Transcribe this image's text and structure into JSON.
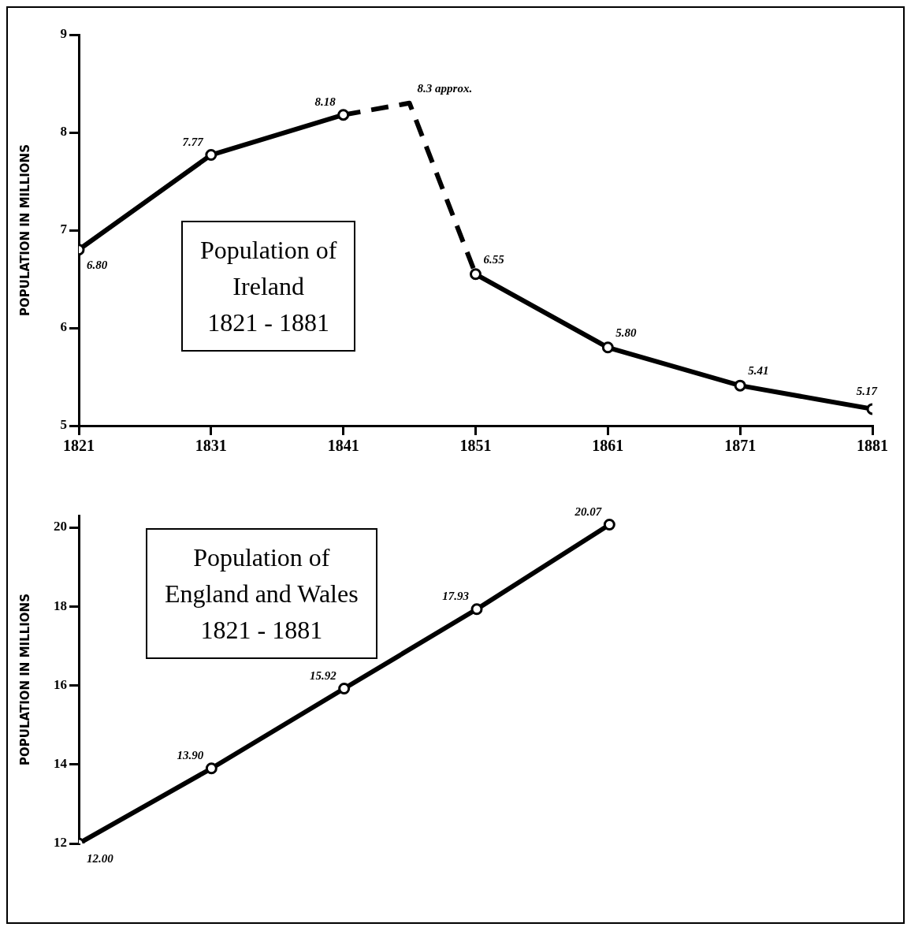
{
  "chart_data": [
    {
      "type": "line",
      "title": "Population of\nIreland\n1821 - 1881",
      "ylabel": "POPULATION IN MILLIONS",
      "xlim": [
        1821,
        1881
      ],
      "xticks": [
        1821,
        1831,
        1841,
        1851,
        1861,
        1871,
        1881
      ],
      "ylim": [
        5,
        9
      ],
      "yticks": [
        5,
        6,
        7,
        8,
        9
      ],
      "grid": false,
      "legend": false,
      "series": [
        {
          "color": "#000000",
          "marker": "circle",
          "line_style": "solid",
          "x": [
            1821,
            1831,
            1841
          ],
          "values": [
            6.8,
            7.77,
            8.18
          ],
          "value_labels": [
            "6.80",
            "7.77",
            "8.18"
          ]
        },
        {
          "color": "#000000",
          "marker": "none",
          "line_style": "dashed",
          "x": [
            1841,
            1846,
            1851
          ],
          "values": [
            8.18,
            8.3,
            6.55
          ],
          "value_labels": [
            null,
            "8.3 approx.",
            null
          ]
        },
        {
          "color": "#000000",
          "marker": "circle",
          "line_style": "solid",
          "x": [
            1851,
            1861,
            1871,
            1881
          ],
          "values": [
            6.55,
            5.8,
            5.41,
            5.17
          ],
          "value_labels": [
            "6.55",
            "5.80",
            "5.41",
            "5.17"
          ]
        }
      ]
    },
    {
      "type": "line",
      "title": "Population of\nEngland and Wales\n1821 - 1881",
      "ylabel": "POPULATION IN MILLIONS",
      "xlim": [
        1821,
        1881
      ],
      "ylim": [
        12,
        20.3
      ],
      "yticks": [
        12,
        14,
        16,
        18,
        20
      ],
      "grid": false,
      "legend": false,
      "tick_labels": "y",
      "series": [
        {
          "color": "#000000",
          "marker": "circle",
          "line_style": "solid",
          "x": [
            1821,
            1831,
            1841,
            1851,
            1861
          ],
          "values": [
            12.0,
            13.9,
            15.92,
            17.93,
            20.07
          ],
          "value_labels": [
            "12.00",
            "13.90",
            "15.92",
            "17.93",
            "20.07"
          ]
        }
      ]
    }
  ]
}
